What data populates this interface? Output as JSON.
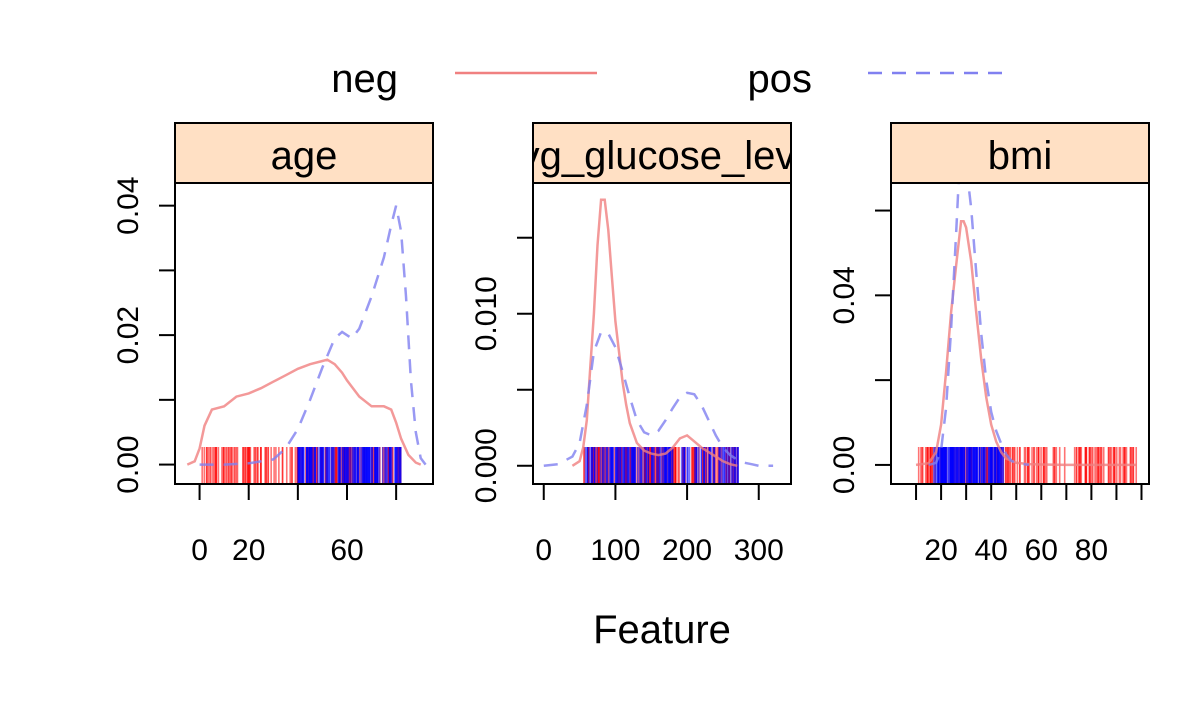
{
  "chart_data": {
    "type": "line",
    "xlabel": "Feature",
    "ylabel": "",
    "legend": {
      "placement": "top",
      "entries": [
        {
          "name": "neg",
          "color": "#f08080",
          "dash": "solid"
        },
        {
          "name": "pos",
          "color": "#8080f0",
          "dash": "dashed"
        }
      ]
    },
    "strip_color": "#ffe0c4",
    "rug_colors": {
      "neg": "#ff0000",
      "pos": "#0000ff"
    },
    "panels": [
      {
        "label": "age",
        "xlim": [
          -10,
          95
        ],
        "ylim": [
          -0.003,
          0.0435
        ],
        "xticks": [
          0,
          20,
          40,
          60,
          80
        ],
        "xtick_labels": [
          "0",
          "20",
          "",
          "60",
          ""
        ],
        "yticks": [
          0,
          0.01,
          0.02,
          0.03,
          0.04
        ],
        "ytick_labels": [
          "0.00",
          "",
          "0.02",
          "",
          "0.04"
        ],
        "rug": [
          {
            "group": "neg",
            "range": [
              0,
              82
            ]
          },
          {
            "group": "pos",
            "range": [
              40,
              82
            ]
          }
        ],
        "series": [
          {
            "name": "neg",
            "x": [
              -5,
              -2,
              0,
              2,
              5,
              10,
              15,
              20,
              25,
              30,
              35,
              40,
              45,
              50,
              52,
              55,
              58,
              60,
              65,
              70,
              75,
              78,
              80,
              82,
              85,
              88,
              90
            ],
            "y": [
              0.0,
              0.0005,
              0.0025,
              0.006,
              0.0085,
              0.009,
              0.0105,
              0.011,
              0.0118,
              0.0128,
              0.0138,
              0.0148,
              0.0155,
              0.016,
              0.0162,
              0.0155,
              0.0142,
              0.013,
              0.0105,
              0.009,
              0.009,
              0.0085,
              0.0065,
              0.004,
              0.0015,
              0.0003,
              0.0
            ]
          },
          {
            "name": "pos",
            "x": [
              0,
              10,
              20,
              30,
              35,
              40,
              45,
              50,
              55,
              58,
              62,
              65,
              70,
              75,
              78,
              80,
              82,
              84,
              86,
              88,
              90,
              92
            ],
            "y": [
              0.0,
              0.0,
              0.0002,
              0.0008,
              0.0025,
              0.0055,
              0.01,
              0.015,
              0.0195,
              0.0205,
              0.0195,
              0.021,
              0.026,
              0.032,
              0.037,
              0.04,
              0.036,
              0.026,
              0.013,
              0.005,
              0.001,
              0.0
            ]
          }
        ]
      },
      {
        "label": "avg_glucose_level",
        "xlim": [
          -15,
          345
        ],
        "ylim": [
          -0.0012,
          0.0186
        ],
        "xticks": [
          0,
          100,
          200,
          300
        ],
        "xtick_labels": [
          "0",
          "100",
          "200",
          "300"
        ],
        "yticks": [
          0,
          0.005,
          0.01,
          0.015
        ],
        "ytick_labels": [
          "0.000",
          "",
          "0.010",
          ""
        ],
        "rug": [
          {
            "group": "neg",
            "range": [
              55,
              272
            ]
          },
          {
            "group": "pos",
            "range": [
              56,
              272
            ]
          }
        ],
        "series": [
          {
            "name": "neg",
            "x": [
              40,
              50,
              55,
              60,
              65,
              70,
              75,
              80,
              85,
              90,
              95,
              100,
              105,
              110,
              115,
              120,
              130,
              140,
              150,
              160,
              170,
              180,
              190,
              200,
              210,
              220,
              230,
              240,
              250,
              260,
              270
            ],
            "y": [
              0.0,
              0.0003,
              0.0012,
              0.003,
              0.0065,
              0.01,
              0.0145,
              0.0175,
              0.0175,
              0.0155,
              0.0125,
              0.0095,
              0.0075,
              0.0055,
              0.004,
              0.0028,
              0.0015,
              0.001,
              0.0008,
              0.0007,
              0.0008,
              0.0012,
              0.0018,
              0.002,
              0.0016,
              0.0012,
              0.0009,
              0.0006,
              0.0003,
              0.0001,
              0.0
            ]
          },
          {
            "name": "pos",
            "x": [
              0,
              20,
              40,
              50,
              60,
              70,
              80,
              90,
              100,
              110,
              120,
              130,
              140,
              150,
              160,
              170,
              180,
              190,
              200,
              210,
              220,
              230,
              240,
              250,
              260,
              270,
              280,
              290,
              300,
              320
            ],
            "y": [
              0.0,
              0.0001,
              0.0006,
              0.0015,
              0.004,
              0.0075,
              0.0088,
              0.0087,
              0.0078,
              0.0062,
              0.0045,
              0.003,
              0.0022,
              0.002,
              0.0023,
              0.003,
              0.0038,
              0.0045,
              0.0048,
              0.0047,
              0.004,
              0.003,
              0.002,
              0.0012,
              0.0007,
              0.0004,
              0.0002,
              0.0001,
              0.0,
              0.0
            ]
          }
        ]
      },
      {
        "label": "bmi",
        "xlim": [
          0,
          103
        ],
        "ylim": [
          -0.0045,
          0.0665
        ],
        "xticks": [
          10,
          20,
          30,
          40,
          50,
          60,
          70,
          80,
          90,
          100
        ],
        "xtick_labels": [
          "",
          "20",
          "",
          "40",
          "",
          "60",
          "",
          "80",
          "",
          ""
        ],
        "yticks": [
          0,
          0.02,
          0.04,
          0.06
        ],
        "ytick_labels": [
          "0.00",
          "",
          "0.04",
          ""
        ],
        "rug": [
          {
            "group": "neg",
            "range": [
              11,
              98
            ]
          },
          {
            "group": "pos",
            "range": [
              17,
              45
            ]
          }
        ],
        "series": [
          {
            "name": "neg",
            "x": [
              10,
              15,
              18,
              20,
              22,
              24,
              26,
              28,
              29,
              30,
              32,
              34,
              36,
              38,
              40,
              42,
              44,
              46,
              50,
              55,
              60,
              70,
              80,
              90,
              98
            ],
            "y": [
              0.0,
              0.0004,
              0.003,
              0.0095,
              0.022,
              0.036,
              0.047,
              0.0575,
              0.0575,
              0.056,
              0.048,
              0.036,
              0.025,
              0.016,
              0.0095,
              0.0055,
              0.003,
              0.0015,
              0.0005,
              0.0002,
              0.0001,
              0.0,
              0.0,
              0.0,
              0.0
            ]
          },
          {
            "name": "pos",
            "x": [
              15,
              18,
              20,
              22,
              24,
              26,
              27,
              28,
              29,
              30,
              32,
              34,
              36,
              38,
              40,
              42,
              44,
              46,
              48,
              50,
              55
            ],
            "y": [
              0.0,
              0.0005,
              0.0035,
              0.0135,
              0.032,
              0.0545,
              0.0665,
              0.0735,
              0.0735,
              0.071,
              0.0605,
              0.0455,
              0.031,
              0.02,
              0.0125,
              0.008,
              0.005,
              0.0025,
              0.001,
              0.0004,
              0.0
            ]
          }
        ]
      }
    ]
  }
}
